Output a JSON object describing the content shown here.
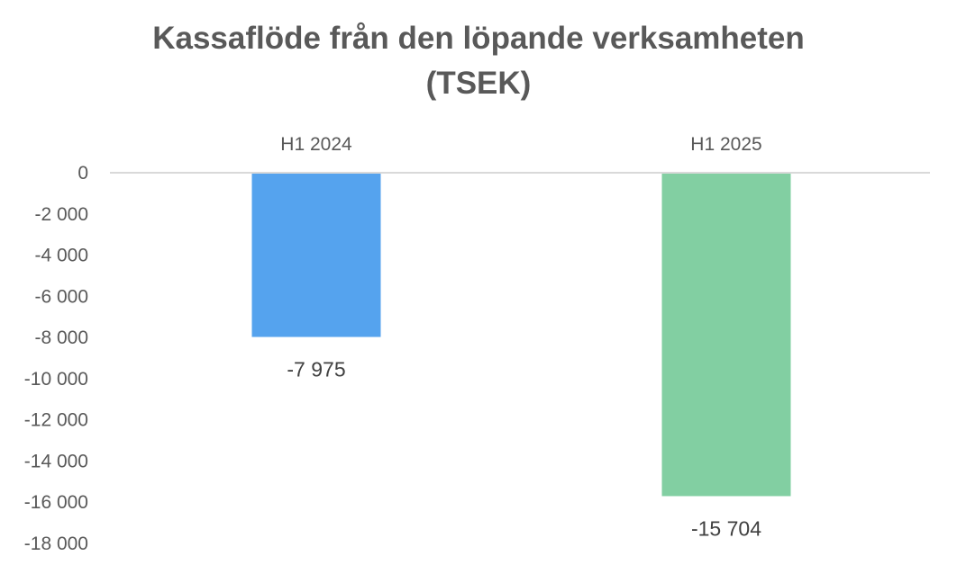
{
  "chart_data": {
    "type": "bar",
    "title": "Kassaflöde från den löpande verksamheten",
    "subtitle": "(TSEK)",
    "xlabel": "",
    "ylabel": "",
    "categories": [
      "H1 2024",
      "H1 2025"
    ],
    "values": [
      -7975,
      -15704
    ],
    "data_labels": [
      "-7 975",
      "-15 704"
    ],
    "bar_colors": [
      "#55a3ee",
      "#82cfa2"
    ],
    "ylim": [
      -18000,
      0
    ],
    "yticks": [
      0,
      -2000,
      -4000,
      -6000,
      -8000,
      -10000,
      -12000,
      -14000,
      -16000,
      -18000
    ],
    "ytick_labels": [
      "0",
      "-2 000",
      "-4 000",
      "-6 000",
      "-8 000",
      "-10 000",
      "-12 000",
      "-14 000",
      "-16 000",
      "-18 000"
    ],
    "category_axis_position": "top",
    "grid": false,
    "legend": "none"
  }
}
